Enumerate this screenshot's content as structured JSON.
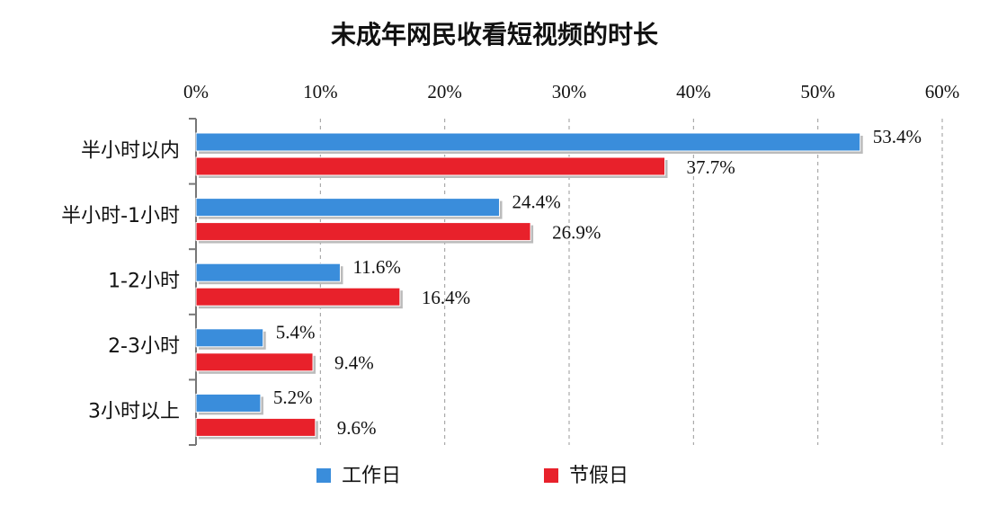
{
  "chart_data": {
    "type": "hbar",
    "title": "未成年网民收看短视频的时长",
    "categories": [
      "半小时以内",
      "半小时-1小时",
      "1-2小时",
      "2-3小时",
      "3小时以上"
    ],
    "series": [
      {
        "name": "工作日",
        "color": "#3a8ddb",
        "values": [
          53.4,
          24.4,
          11.6,
          5.4,
          5.2
        ],
        "value_labels": [
          "53.4%",
          "24.4%",
          "11.6%",
          "5.4%",
          "5.2%"
        ]
      },
      {
        "name": "节假日",
        "color": "#e8212b",
        "values": [
          37.7,
          26.9,
          16.4,
          9.4,
          9.6
        ],
        "value_labels": [
          "37.7%",
          "26.9%",
          "16.4%",
          "9.4%",
          "9.6%"
        ]
      }
    ],
    "xlim": [
      0,
      60
    ],
    "xticks": [
      {
        "value": 0,
        "label": "0%"
      },
      {
        "value": 10,
        "label": "10%"
      },
      {
        "value": 20,
        "label": "20%"
      },
      {
        "value": 30,
        "label": "30%"
      },
      {
        "value": 40,
        "label": "40%"
      },
      {
        "value": 50,
        "label": "50%"
      },
      {
        "value": 60,
        "label": "60%"
      }
    ],
    "grid": true,
    "legend": "bottom"
  }
}
